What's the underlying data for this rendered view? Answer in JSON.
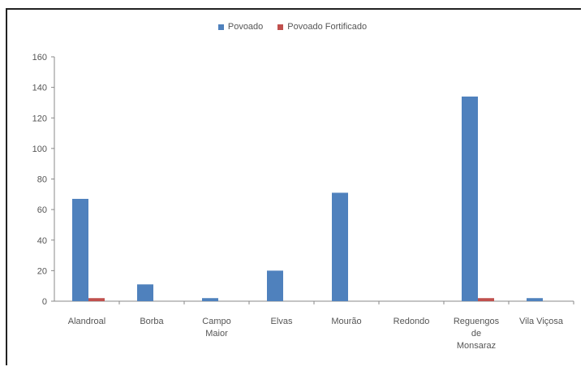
{
  "chart_data": {
    "type": "bar",
    "categories": [
      [
        "Alandroal"
      ],
      [
        "Borba"
      ],
      [
        "Campo",
        "Maior"
      ],
      [
        "Elvas"
      ],
      [
        "Mourão"
      ],
      [
        "Redondo"
      ],
      [
        "Reguengos",
        "de",
        "Monsaraz"
      ],
      [
        "Vila Viçosa"
      ]
    ],
    "series": [
      {
        "name": "Povoado",
        "color": "#4f81bd",
        "values": [
          67,
          11,
          2,
          20,
          71,
          0,
          134,
          2
        ]
      },
      {
        "name": "Povoado Fortificado",
        "color": "#c0504d",
        "values": [
          2,
          0,
          0,
          0,
          0,
          0,
          2,
          0
        ]
      }
    ],
    "ylim": [
      0,
      160
    ],
    "yticks": [
      0,
      20,
      40,
      60,
      80,
      100,
      120,
      140,
      160
    ],
    "grid": false,
    "legend": "top-center",
    "title": "",
    "xlabel": "",
    "ylabel": ""
  }
}
